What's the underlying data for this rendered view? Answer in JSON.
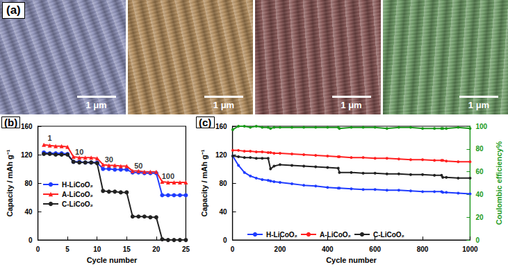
{
  "panel_a": {
    "label": "(a)",
    "images": [
      {
        "scale_bar": "1 μm",
        "color": "#8c90bb"
      },
      {
        "scale_bar": "1 μm",
        "color": "#b48b57"
      },
      {
        "scale_bar": "1 μm",
        "color": "#85504f"
      },
      {
        "scale_bar": "1 μm",
        "color": "#6a9b62"
      }
    ]
  },
  "chart_data": [
    {
      "type": "line",
      "title": "(b)",
      "xlabel": "Cycle number",
      "ylabel": "Capacity / mAh g⁻¹",
      "x": [
        1,
        2,
        3,
        4,
        5,
        6,
        7,
        8,
        9,
        10,
        11,
        12,
        13,
        14,
        15,
        16,
        17,
        18,
        19,
        20,
        21,
        22,
        23,
        24,
        25
      ],
      "series": [
        {
          "name": "H-LiCoO₂",
          "color": "#1f3cff",
          "marker": "circle",
          "line_style": "solid",
          "values": [
            123,
            122,
            122,
            122,
            121,
            110,
            110,
            109,
            109,
            109,
            100,
            100,
            99,
            99,
            99,
            95,
            95,
            94,
            94,
            94,
            63,
            63,
            63,
            63,
            63
          ]
        },
        {
          "name": "A-LiCoO₂",
          "color": "#ff2020",
          "marker": "triangle",
          "line_style": "solid",
          "values": [
            134,
            133,
            132,
            132,
            131,
            117,
            116,
            116,
            116,
            115,
            106,
            105,
            105,
            104,
            104,
            97,
            97,
            96,
            96,
            96,
            82,
            81,
            81,
            81,
            81
          ]
        },
        {
          "name": "C-LiCoO₂",
          "color": "#222222",
          "marker": "circle",
          "line_style": "solid",
          "values": [
            121,
            121,
            120,
            120,
            120,
            110,
            109,
            109,
            109,
            108,
            69,
            68,
            68,
            67,
            67,
            33,
            33,
            33,
            32,
            32,
            1,
            0,
            0,
            0,
            0
          ]
        }
      ],
      "annotations": [
        {
          "text": "1",
          "x": 2,
          "y": 143
        },
        {
          "text": "10",
          "x": 7,
          "y": 124
        },
        {
          "text": "30",
          "x": 12,
          "y": 113
        },
        {
          "text": "50",
          "x": 17,
          "y": 104
        },
        {
          "text": "100",
          "x": 22,
          "y": 90
        }
      ],
      "xlim": [
        0,
        25
      ],
      "xticks": [
        0,
        5,
        10,
        15,
        20,
        25
      ],
      "ylim": [
        0,
        160
      ],
      "yticks": [
        0,
        40,
        80,
        120,
        160
      ],
      "grid": false,
      "legend": "left"
    },
    {
      "type": "line",
      "title": "(c)",
      "xlabel": "Cycle number",
      "ylabel": "Capacity / mAh g⁻¹",
      "y2label": "Coulombic efficiency%",
      "x": [
        1,
        25,
        50,
        75,
        100,
        125,
        150,
        160,
        175,
        200,
        250,
        300,
        350,
        400,
        445,
        450,
        500,
        550,
        600,
        650,
        700,
        750,
        800,
        850,
        880,
        885,
        900,
        950,
        1000
      ],
      "series": [
        {
          "name": "H-LiCoO₂",
          "color": "#1f3cff",
          "marker": "circle",
          "line_style": "solid",
          "values": [
            118,
            105,
            95,
            90,
            87,
            85,
            84,
            83,
            82,
            81,
            79,
            77,
            76,
            74,
            73,
            73,
            72,
            71,
            71,
            70,
            70,
            69,
            68,
            68,
            68,
            67,
            67,
            66,
            65
          ]
        },
        {
          "name": "A-LiCoO₂",
          "color": "#ff2020",
          "marker": "circle",
          "line_style": "solid",
          "values": [
            126,
            126,
            125,
            125,
            124,
            124,
            123,
            123,
            122,
            122,
            121,
            120,
            119,
            118,
            117,
            117,
            116,
            116,
            115,
            115,
            114,
            113,
            113,
            112,
            112,
            112,
            111,
            110,
            110
          ]
        },
        {
          "name": "C-LiCoO₂",
          "color": "#222222",
          "marker": "circle",
          "line_style": "solid",
          "values": [
            118,
            117,
            116,
            116,
            115,
            115,
            115,
            100,
            104,
            106,
            105,
            104,
            103,
            102,
            101,
            95,
            95,
            94,
            94,
            93,
            93,
            92,
            92,
            91,
            91,
            88,
            88,
            87,
            87
          ]
        },
        {
          "color": "#1a9a1a",
          "marker": "circle",
          "line_style": "solid",
          "axis": "y2",
          "values": [
            97,
            100,
            100,
            99,
            100,
            99,
            99,
            98,
            99,
            99,
            99,
            99,
            99,
            99,
            99,
            98,
            99,
            99,
            99,
            98,
            99,
            99,
            98,
            98,
            98,
            98,
            98,
            99,
            98
          ]
        }
      ],
      "xlim": [
        0,
        1000
      ],
      "xticks": [
        0,
        200,
        400,
        600,
        800,
        1000
      ],
      "ylim": [
        0,
        160
      ],
      "yticks": [
        0,
        40,
        80,
        120,
        160
      ],
      "y2lim": [
        0,
        100
      ],
      "y2ticks": [
        0,
        20,
        40,
        60,
        80,
        100
      ],
      "grid": false,
      "legend": "bottom"
    }
  ]
}
